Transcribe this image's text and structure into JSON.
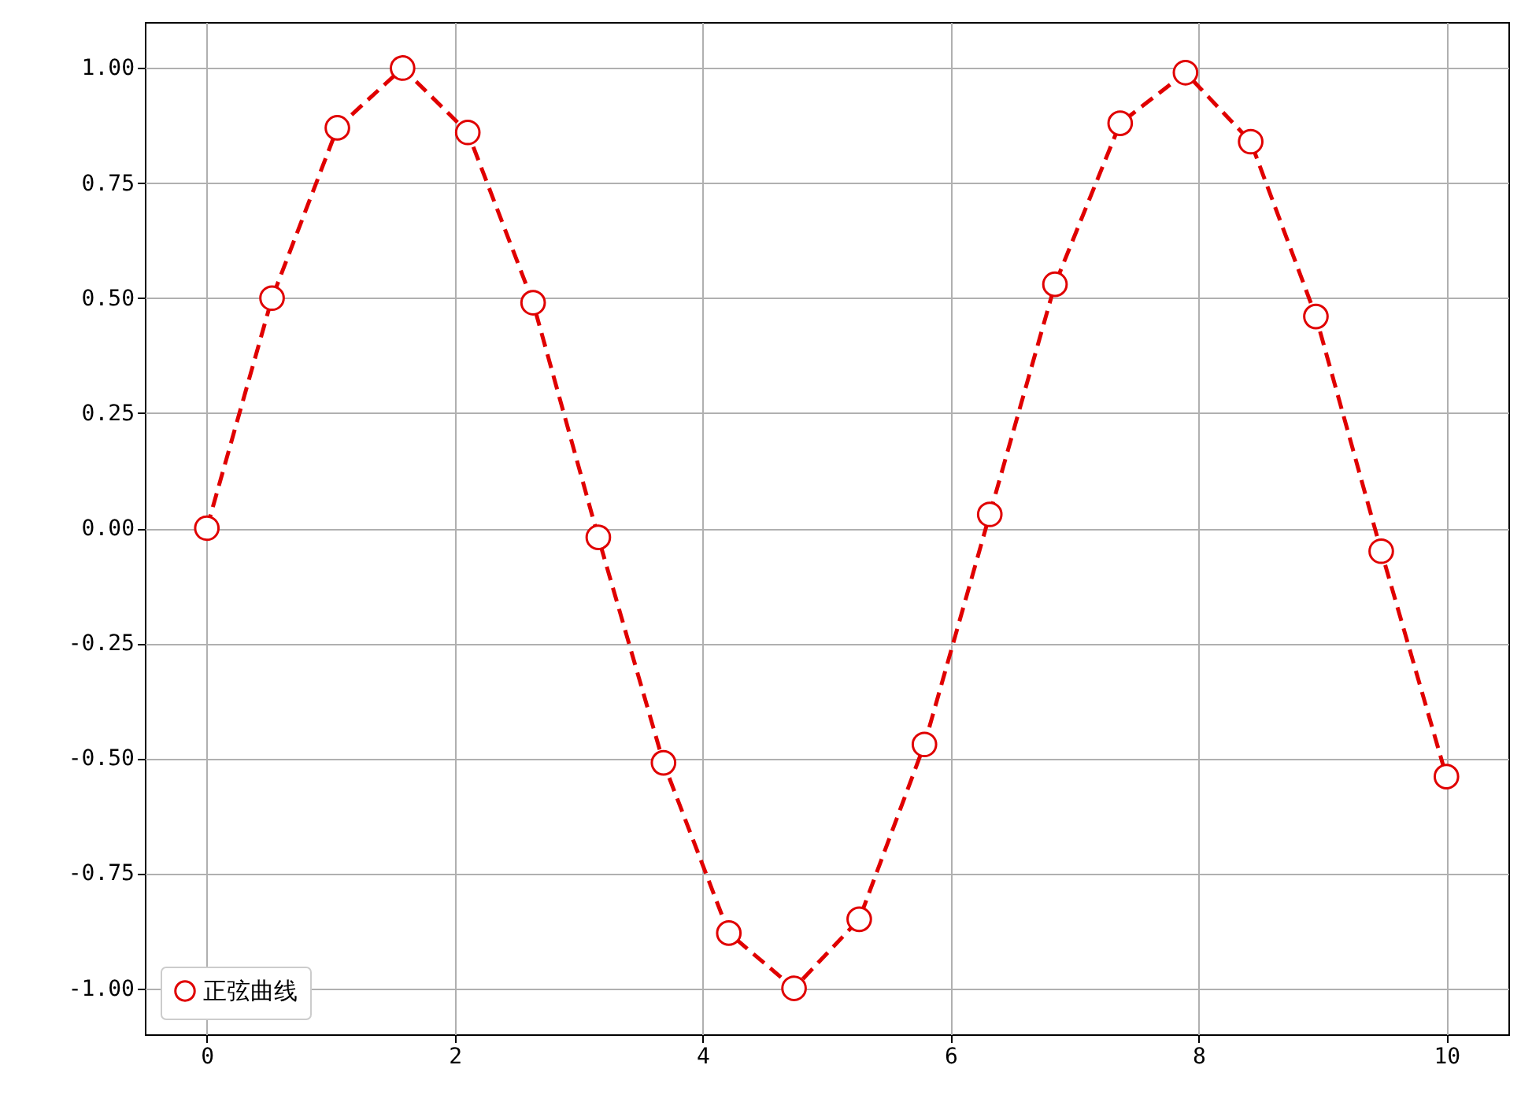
{
  "chart_data": {
    "type": "line",
    "x": [
      0,
      0.526,
      1.053,
      1.579,
      2.105,
      2.632,
      3.158,
      3.684,
      4.211,
      4.737,
      5.263,
      5.789,
      6.316,
      6.842,
      7.368,
      7.895,
      8.421,
      8.947,
      9.474,
      10
    ],
    "series": [
      {
        "name": "正弦曲线",
        "color": "#e00000",
        "values": [
          0,
          0.5,
          0.87,
          1.0,
          0.86,
          0.49,
          -0.02,
          -0.51,
          -0.88,
          -1.0,
          -0.85,
          -0.47,
          0.03,
          0.53,
          0.88,
          0.99,
          0.84,
          0.46,
          -0.05,
          -0.54
        ]
      }
    ],
    "xlim": [
      -0.5,
      10.5
    ],
    "xticks": [
      0,
      2,
      4,
      6,
      8,
      10
    ],
    "ylim": [
      -1.1,
      1.1
    ],
    "yticks": [
      {
        "value": -1,
        "label": "-1.00"
      },
      {
        "value": -0.75,
        "label": "-0.75"
      },
      {
        "value": -0.5,
        "label": "-0.50"
      },
      {
        "value": -0.25,
        "label": "-0.25"
      },
      {
        "value": 0,
        "label": "0.00"
      },
      {
        "value": 0.25,
        "label": "0.25"
      },
      {
        "value": 0.5,
        "label": "0.50"
      },
      {
        "value": 0.75,
        "label": "0.75"
      },
      {
        "value": 1,
        "label": "1.00"
      }
    ],
    "grid": true,
    "legend": "bottom left",
    "marker": "circle",
    "line_style": "dashed"
  }
}
